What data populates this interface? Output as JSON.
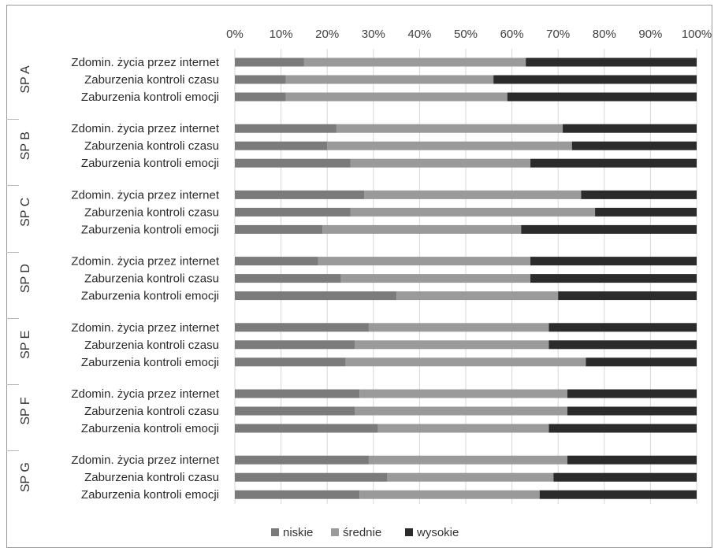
{
  "chart_data": {
    "type": "bar",
    "orientation": "horizontal",
    "stacked": "percent",
    "xlim": [
      0,
      100
    ],
    "x_ticks": [
      "0%",
      "10%",
      "20%",
      "30%",
      "40%",
      "50%",
      "60%",
      "70%",
      "80%",
      "90%",
      "100%"
    ],
    "grid": true,
    "legend_position": "bottom",
    "categories": [
      "Zdomin. życia przez internet",
      "Zaburzenia kontroli czasu",
      "Zaburzenia kontroli emocji"
    ],
    "series_names": [
      "niskie",
      "średnie",
      "wysokie"
    ],
    "series_colors": [
      "#7b7b7b",
      "#9a9a9a",
      "#2b2b2b"
    ],
    "groups": [
      {
        "name": "SP A",
        "rows": [
          [
            15,
            48,
            37
          ],
          [
            11,
            45,
            44
          ],
          [
            11,
            48,
            41
          ]
        ]
      },
      {
        "name": "SP B",
        "rows": [
          [
            22,
            49,
            29
          ],
          [
            20,
            53,
            27
          ],
          [
            25,
            39,
            36
          ]
        ]
      },
      {
        "name": "SP C",
        "rows": [
          [
            28,
            47,
            25
          ],
          [
            25,
            53,
            22
          ],
          [
            19,
            43,
            38
          ]
        ]
      },
      {
        "name": "SP D",
        "rows": [
          [
            18,
            46,
            36
          ],
          [
            23,
            41,
            36
          ],
          [
            35,
            35,
            30
          ]
        ]
      },
      {
        "name": "SP E",
        "rows": [
          [
            29,
            39,
            32
          ],
          [
            26,
            42,
            32
          ],
          [
            24,
            52,
            24
          ]
        ]
      },
      {
        "name": "SP F",
        "rows": [
          [
            27,
            45,
            28
          ],
          [
            26,
            46,
            28
          ],
          [
            31,
            37,
            32
          ]
        ]
      },
      {
        "name": "SP G",
        "rows": [
          [
            29,
            43,
            28
          ],
          [
            33,
            36,
            31
          ],
          [
            27,
            39,
            34
          ]
        ]
      }
    ]
  }
}
